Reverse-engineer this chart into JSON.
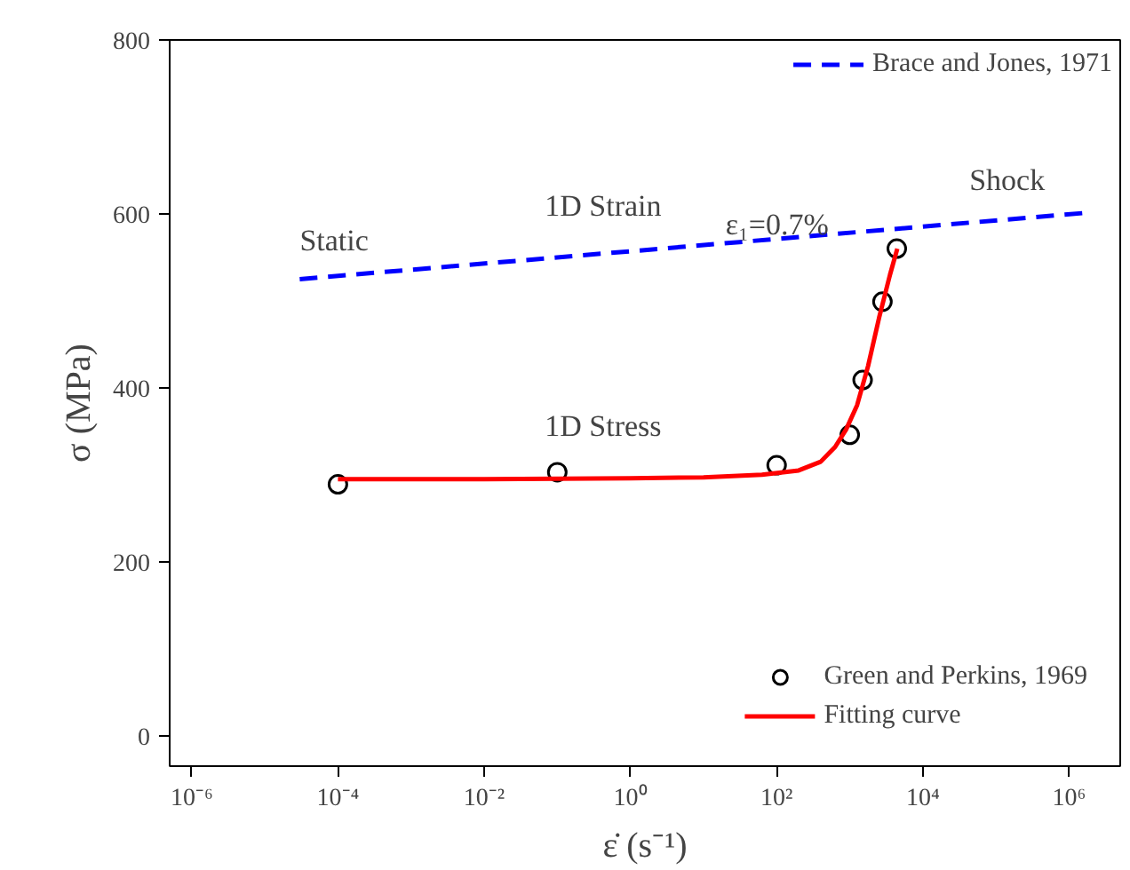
{
  "chart_data": {
    "type": "line",
    "xlabel": "ε̇ (s⁻¹)",
    "ylabel": "σ (MPa)",
    "log": "x",
    "xlim": [
      5e-07,
      5000000.0
    ],
    "ylim": [
      -35,
      800
    ],
    "xticks": [
      {
        "value": 1e-06,
        "label": "10⁻⁶"
      },
      {
        "value": 0.0001,
        "label": "10⁻⁴"
      },
      {
        "value": 0.01,
        "label": "10⁻²"
      },
      {
        "value": 1,
        "label": "10⁰"
      },
      {
        "value": 100,
        "label": "10²"
      },
      {
        "value": 10000,
        "label": "10⁴"
      },
      {
        "value": 1000000,
        "label": "10⁶"
      }
    ],
    "yticks": [
      0,
      200,
      400,
      600,
      800
    ],
    "grid": false,
    "legend": "right",
    "series": [
      {
        "name": "Brace and Jones, 1971",
        "line_style": "dashed",
        "color": "#0000ff",
        "x": [
          3e-05,
          1600000.0
        ],
        "values": [
          525,
          601
        ]
      },
      {
        "name": "Green and Perkins, 1969",
        "type": "scatter",
        "marker": "circle",
        "color": "#000000",
        "x": [
          0.0001,
          0.1,
          100,
          1000,
          1500,
          2800,
          4400
        ],
        "values": [
          289,
          303,
          311,
          346,
          409,
          499,
          560
        ]
      },
      {
        "name": "Fitting curve",
        "line_style": "solid",
        "color": "#ff0000",
        "x": [
          0.0001,
          0.01,
          1,
          10,
          63,
          200,
          400,
          630,
          890,
          1260,
          1780,
          2510,
          3550,
          4470
        ],
        "values": [
          295,
          295,
          296,
          297,
          300,
          305,
          315,
          332,
          352,
          380,
          425,
          480,
          530,
          560
        ]
      }
    ],
    "annotations": [
      "Static",
      "1D Strain",
      "Shock",
      "1D Stress",
      "ε₁=0.7%"
    ]
  }
}
